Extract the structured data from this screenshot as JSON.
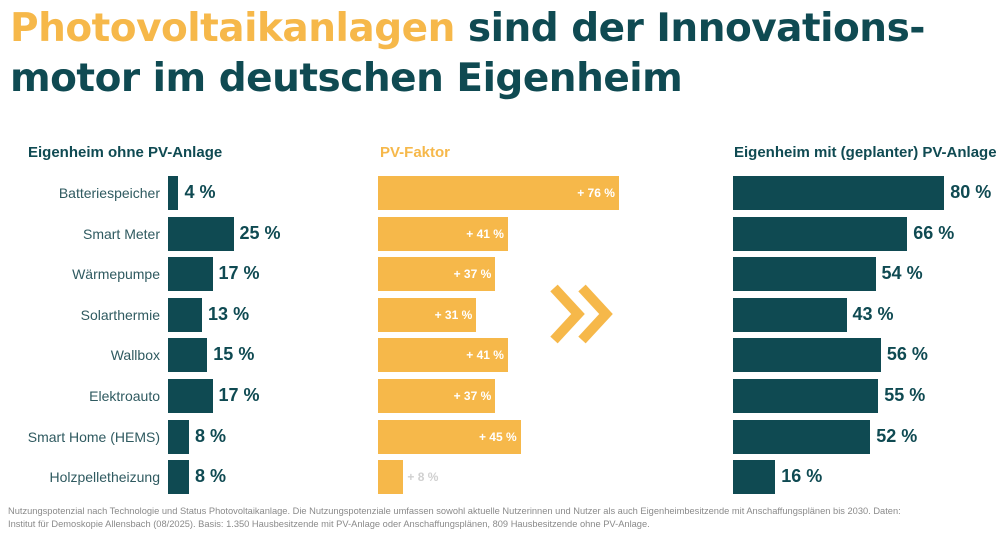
{
  "title": {
    "highlight": "Photovoltaikanlagen",
    "rest_line1": " sind der Innovations-",
    "line2": "motor im deutschen Eigenheim"
  },
  "colors": {
    "primary": "#0f4a52",
    "accent": "#f6b84a",
    "label": "#2f5a60",
    "footnote": "#8a8a8a"
  },
  "chart_data": [
    {
      "type": "bar",
      "orientation": "horizontal",
      "title": "Eigenheim ohne PV-Anlage",
      "categories": [
        "Batteriespeicher",
        "Smart Meter",
        "Wärmepumpe",
        "Solarthermie",
        "Wallbox",
        "Elektroauto",
        "Smart Home (HEMS)",
        "Holzpelletheizung"
      ],
      "values": [
        4,
        25,
        17,
        13,
        15,
        17,
        8,
        8
      ],
      "labels": [
        "4 %",
        "25 %",
        "17 %",
        "13 %",
        "15 %",
        "17 %",
        "8 %",
        "8 %"
      ],
      "unit": "%",
      "xlim": [
        0,
        100
      ]
    },
    {
      "type": "bar",
      "orientation": "horizontal",
      "title": "PV-Faktor",
      "categories": [
        "Batteriespeicher",
        "Smart Meter",
        "Wärmepumpe",
        "Solarthermie",
        "Wallbox",
        "Elektroauto",
        "Smart Home (HEMS)",
        "Holzpelletheizung"
      ],
      "values": [
        76,
        41,
        37,
        31,
        41,
        37,
        45,
        8
      ],
      "labels": [
        "+ 76 %",
        "+ 41 %",
        "+ 37 %",
        "+ 31 %",
        "+ 41 %",
        "+ 37 %",
        "+ 45 %",
        "+ 8 %"
      ],
      "unit": "%",
      "xlim": [
        0,
        80
      ]
    },
    {
      "type": "bar",
      "orientation": "horizontal",
      "title": "Eigenheim mit (geplanter) PV-Anlage",
      "categories": [
        "Batteriespeicher",
        "Smart Meter",
        "Wärmepumpe",
        "Solarthermie",
        "Wallbox",
        "Elektroauto",
        "Smart Home (HEMS)",
        "Holzpelletheizung"
      ],
      "values": [
        80,
        66,
        54,
        43,
        56,
        55,
        52,
        16
      ],
      "labels": [
        "80 %",
        "66 %",
        "54 %",
        "43 %",
        "56 %",
        "55 %",
        "52 %",
        "16 %"
      ],
      "unit": "%",
      "xlim": [
        0,
        100
      ]
    }
  ],
  "icons": {
    "arrow": "double-chevron-right"
  },
  "footnote": {
    "line1": "Nutzungspotenzial nach Technologie und Status Photovoltaikanlage. Die Nutzungspotenziale umfassen sowohl aktuelle Nutzerinnen und Nutzer als auch Eigenheimbesitzende mit Anschaffungsplänen bis 2030. Daten:",
    "line2": "Institut für Demoskopie Allensbach (08/2025). Basis: 1.350 Hausbesitzende mit PV-Anlage oder Anschaffungsplänen, 809 Hausbesitzende ohne PV-Anlage."
  }
}
